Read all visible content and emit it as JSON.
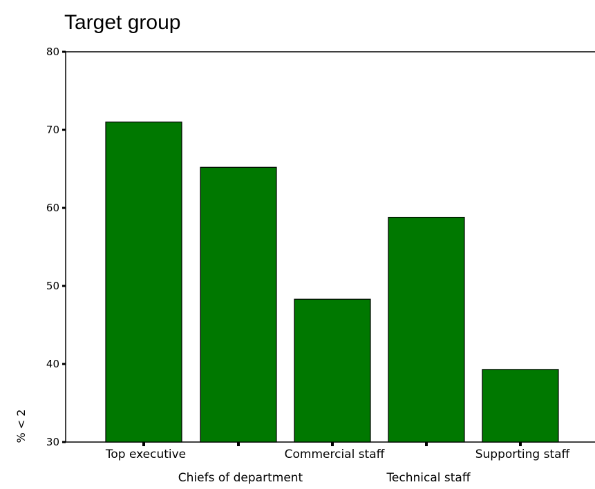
{
  "chart_data": {
    "type": "bar",
    "title": "Target group",
    "xlabel": "",
    "ylabel": "% < 2",
    "categories": [
      "Top executive",
      "Chiefs of department",
      "Commercial staff",
      "Technical staff",
      "Supporting staff"
    ],
    "values": [
      71.0,
      65.2,
      48.3,
      58.8,
      39.3
    ],
    "ylim": [
      30,
      80
    ],
    "yticks": [
      30,
      40,
      50,
      60,
      70,
      80
    ],
    "grid": false,
    "legend": "none",
    "colors": {
      "bar": "#007800",
      "bar_edge": "#000000",
      "axis": "#000000"
    }
  }
}
